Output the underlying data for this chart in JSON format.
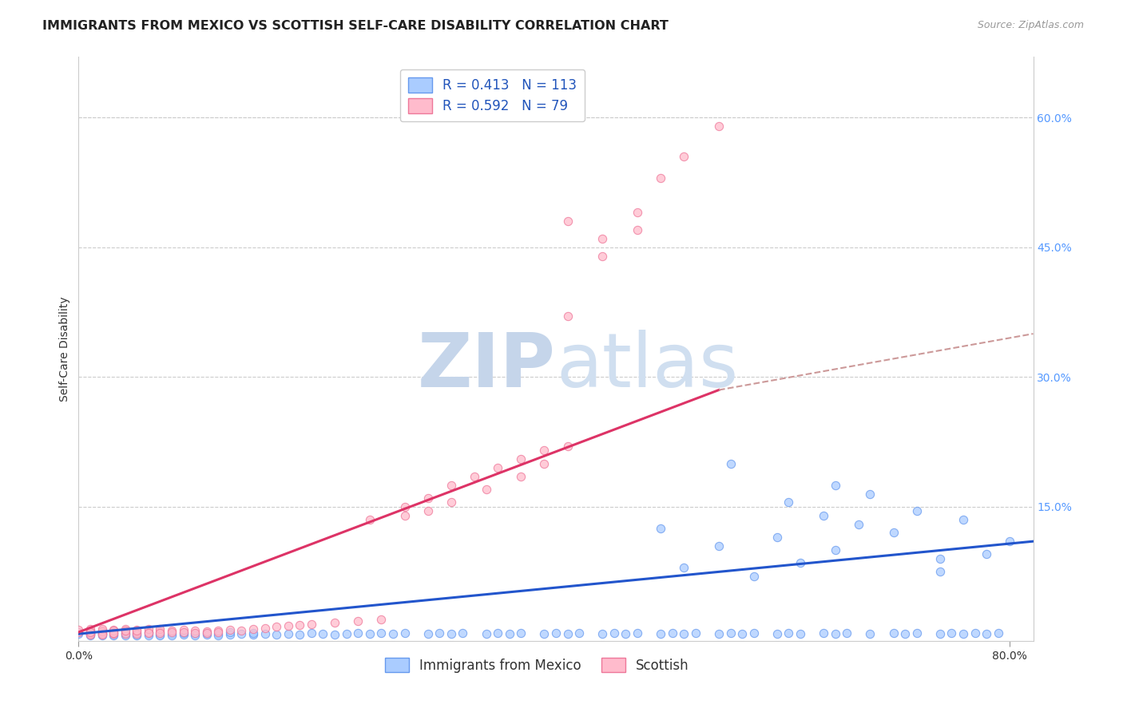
{
  "title": "IMMIGRANTS FROM MEXICO VS SCOTTISH SELF-CARE DISABILITY CORRELATION CHART",
  "source": "Source: ZipAtlas.com",
  "ylabel": "Self-Care Disability",
  "xlim": [
    0.0,
    0.82
  ],
  "ylim": [
    -0.005,
    0.67
  ],
  "y_ticks_right": [
    0.6,
    0.45,
    0.3,
    0.15
  ],
  "y_tick_labels_right": [
    "60.0%",
    "45.0%",
    "30.0%",
    "15.0%"
  ],
  "background_color": "#ffffff",
  "grid_color": "#dddddd",
  "title_fontsize": 11.5,
  "source_fontsize": 9,
  "axis_label_fontsize": 10,
  "tick_fontsize": 10,
  "legend_fontsize": 12,
  "blue_scatter_x": [
    0.0,
    0.0,
    0.01,
    0.01,
    0.01,
    0.01,
    0.01,
    0.02,
    0.02,
    0.02,
    0.02,
    0.03,
    0.03,
    0.03,
    0.04,
    0.04,
    0.04,
    0.05,
    0.05,
    0.05,
    0.06,
    0.06,
    0.06,
    0.07,
    0.07,
    0.07,
    0.08,
    0.08,
    0.09,
    0.09,
    0.1,
    0.1,
    0.11,
    0.11,
    0.12,
    0.12,
    0.13,
    0.13,
    0.14,
    0.15,
    0.15,
    0.16,
    0.17,
    0.18,
    0.19,
    0.2,
    0.21,
    0.22,
    0.23,
    0.24,
    0.25,
    0.26,
    0.27,
    0.28,
    0.3,
    0.31,
    0.32,
    0.33,
    0.35,
    0.36,
    0.37,
    0.38,
    0.4,
    0.41,
    0.42,
    0.43,
    0.45,
    0.46,
    0.47,
    0.48,
    0.5,
    0.51,
    0.52,
    0.53,
    0.55,
    0.56,
    0.57,
    0.58,
    0.6,
    0.61,
    0.62,
    0.64,
    0.65,
    0.66,
    0.68,
    0.7,
    0.71,
    0.72,
    0.74,
    0.75,
    0.76,
    0.77,
    0.78,
    0.79,
    0.5,
    0.55,
    0.6,
    0.65,
    0.7,
    0.74,
    0.56,
    0.61,
    0.65,
    0.68,
    0.72,
    0.76,
    0.78,
    0.8,
    0.64,
    0.67,
    0.52,
    0.58,
    0.62,
    0.74
  ],
  "blue_scatter_y": [
    0.003,
    0.005,
    0.002,
    0.004,
    0.001,
    0.003,
    0.006,
    0.002,
    0.004,
    0.001,
    0.003,
    0.002,
    0.005,
    0.001,
    0.003,
    0.001,
    0.004,
    0.002,
    0.004,
    0.001,
    0.003,
    0.001,
    0.005,
    0.002,
    0.004,
    0.001,
    0.003,
    0.001,
    0.002,
    0.004,
    0.003,
    0.001,
    0.002,
    0.004,
    0.003,
    0.001,
    0.002,
    0.005,
    0.003,
    0.002,
    0.004,
    0.003,
    0.002,
    0.003,
    0.002,
    0.004,
    0.003,
    0.002,
    0.003,
    0.004,
    0.003,
    0.004,
    0.003,
    0.004,
    0.003,
    0.004,
    0.003,
    0.004,
    0.003,
    0.004,
    0.003,
    0.004,
    0.003,
    0.004,
    0.003,
    0.004,
    0.003,
    0.004,
    0.003,
    0.004,
    0.003,
    0.004,
    0.003,
    0.004,
    0.003,
    0.004,
    0.003,
    0.004,
    0.003,
    0.004,
    0.003,
    0.004,
    0.003,
    0.004,
    0.003,
    0.004,
    0.003,
    0.004,
    0.003,
    0.004,
    0.003,
    0.004,
    0.003,
    0.004,
    0.125,
    0.105,
    0.115,
    0.1,
    0.12,
    0.09,
    0.2,
    0.155,
    0.175,
    0.165,
    0.145,
    0.135,
    0.095,
    0.11,
    0.14,
    0.13,
    0.08,
    0.07,
    0.085,
    0.075
  ],
  "pink_scatter_x": [
    0.0,
    0.0,
    0.01,
    0.01,
    0.01,
    0.01,
    0.01,
    0.01,
    0.01,
    0.02,
    0.02,
    0.02,
    0.02,
    0.02,
    0.02,
    0.03,
    0.03,
    0.03,
    0.03,
    0.03,
    0.04,
    0.04,
    0.04,
    0.04,
    0.05,
    0.05,
    0.05,
    0.05,
    0.06,
    0.06,
    0.06,
    0.07,
    0.07,
    0.07,
    0.08,
    0.08,
    0.09,
    0.09,
    0.1,
    0.1,
    0.11,
    0.11,
    0.12,
    0.12,
    0.13,
    0.14,
    0.15,
    0.16,
    0.17,
    0.18,
    0.19,
    0.2,
    0.22,
    0.24,
    0.26,
    0.28,
    0.3,
    0.32,
    0.34,
    0.36,
    0.38,
    0.4,
    0.42,
    0.35,
    0.38,
    0.3,
    0.32,
    0.4,
    0.25,
    0.28,
    0.42,
    0.45,
    0.48,
    0.5,
    0.52,
    0.55,
    0.42,
    0.45,
    0.48
  ],
  "pink_scatter_y": [
    0.005,
    0.008,
    0.004,
    0.007,
    0.003,
    0.006,
    0.009,
    0.002,
    0.005,
    0.004,
    0.007,
    0.003,
    0.006,
    0.009,
    0.002,
    0.005,
    0.008,
    0.003,
    0.007,
    0.004,
    0.006,
    0.009,
    0.003,
    0.007,
    0.005,
    0.008,
    0.003,
    0.007,
    0.005,
    0.009,
    0.004,
    0.006,
    0.009,
    0.004,
    0.007,
    0.005,
    0.008,
    0.005,
    0.007,
    0.004,
    0.006,
    0.004,
    0.007,
    0.005,
    0.008,
    0.007,
    0.009,
    0.01,
    0.011,
    0.012,
    0.013,
    0.014,
    0.016,
    0.018,
    0.02,
    0.14,
    0.16,
    0.175,
    0.185,
    0.195,
    0.205,
    0.215,
    0.22,
    0.17,
    0.185,
    0.145,
    0.155,
    0.2,
    0.135,
    0.15,
    0.37,
    0.44,
    0.49,
    0.53,
    0.555,
    0.59,
    0.48,
    0.46,
    0.47
  ],
  "blue_line_x": [
    0.0,
    0.82
  ],
  "blue_line_y": [
    0.003,
    0.11
  ],
  "pink_line_x": [
    0.0,
    0.55
  ],
  "pink_line_y": [
    0.005,
    0.285
  ],
  "pink_dashed_line_x": [
    0.55,
    0.82
  ],
  "pink_dashed_line_y": [
    0.285,
    0.35
  ]
}
